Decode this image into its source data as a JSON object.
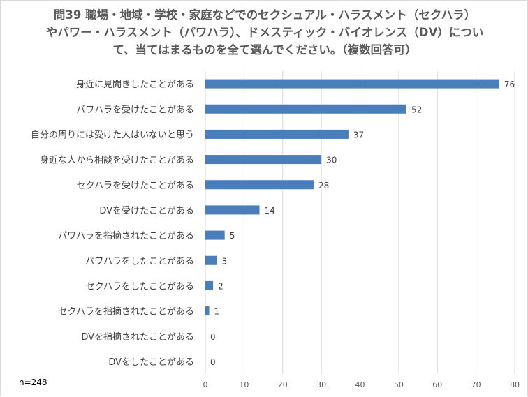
{
  "chart_data": {
    "type": "bar",
    "orientation": "horizontal",
    "title": "問39 職場・地域・学校・家庭などでのセクシュアル・ハラスメント（セクハラ）\nやパワー・ハラスメント（パワハラ）、ドメスティック・バイオレンス（DV）につい\nて、当てはまるものを全て選んでください。（複数回答可）",
    "categories": [
      "身近に見聞きしたことがある",
      "パワハラを受けたことがある",
      "自分の周りには受けた人はいないと思う",
      "身近な人から相談を受けたことがある",
      "セクハラを受けたことがある",
      "DVを受けたことがある",
      "パワハラを指摘されたことがある",
      "パワハラをしたことがある",
      "セクハラをしたことがある",
      "セクハラを指摘されたことがある",
      "DVを指摘されたことがある",
      "DVをしたことがある"
    ],
    "values": [
      76,
      52,
      37,
      30,
      28,
      14,
      5,
      3,
      2,
      1,
      0,
      0
    ],
    "xlim": [
      0,
      80
    ],
    "xticks": [
      0,
      10,
      20,
      30,
      40,
      50,
      60,
      70,
      80
    ],
    "grid": true,
    "bar_color": "#4a7ebb",
    "grid_color": "#d9d9d9",
    "data_labels": true,
    "note": "n=248"
  }
}
